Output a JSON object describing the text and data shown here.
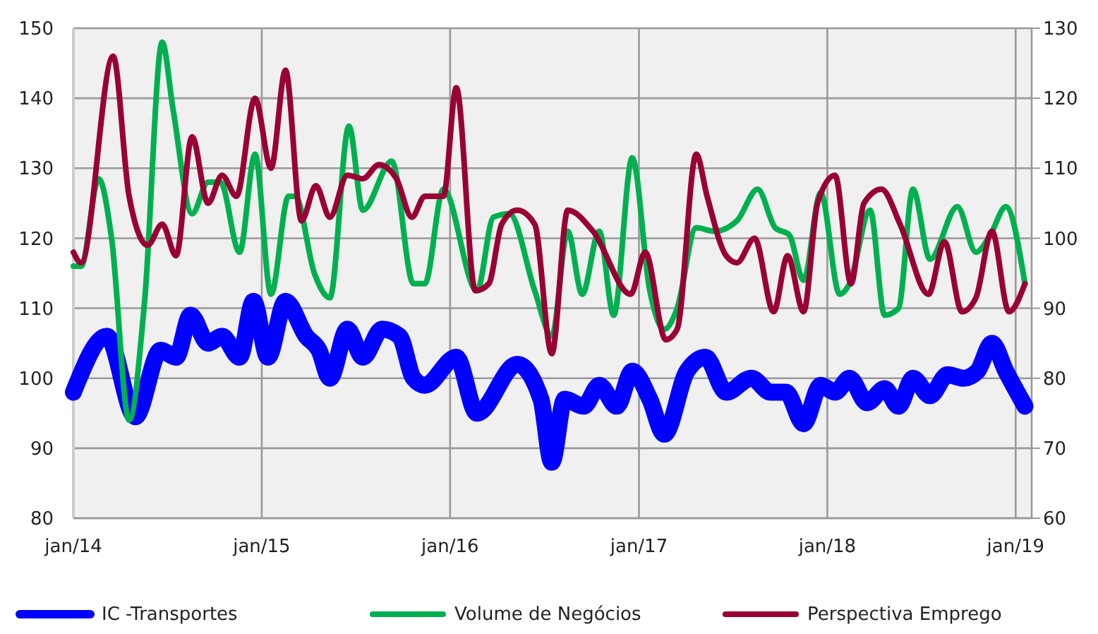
{
  "chart_data": {
    "type": "line",
    "xlim": [
      "2014-01-01",
      "2019-02-01"
    ],
    "xticks": [
      {
        "value": "2014-01-01",
        "label": "jan/14"
      },
      {
        "value": "2015-01-01",
        "label": "jan/15"
      },
      {
        "value": "2016-01-01",
        "label": "jan/16"
      },
      {
        "value": "2017-01-01",
        "label": "jan/17"
      },
      {
        "value": "2018-01-01",
        "label": "jan/18"
      },
      {
        "value": "2019-01-01",
        "label": "jan/19"
      }
    ],
    "ylim": [
      80,
      150
    ],
    "yticks": [
      80,
      90,
      100,
      110,
      120,
      130,
      140,
      150
    ],
    "y2lim": [
      60,
      130
    ],
    "y2ticks": [
      60,
      70,
      80,
      90,
      100,
      110,
      120,
      130
    ],
    "grid": true,
    "legend": "bottom",
    "marker": "none",
    "line_style": "solid",
    "series": [
      {
        "name": "IC -Transportes",
        "color": "#0000ff",
        "x": [
          "2014-01-01",
          "2014-03-07",
          "2014-05-01",
          "2014-06-19",
          "2014-07-19",
          "2014-08-16",
          "2014-09-19",
          "2014-10-16",
          "2014-11-19",
          "2014-12-16",
          "2015-01-13",
          "2015-02-16",
          "2015-03-28",
          "2015-04-22",
          "2015-05-13",
          "2015-06-16",
          "2015-07-16",
          "2015-08-22",
          "2015-09-25",
          "2015-10-22",
          "2015-11-13",
          "2016-01-13",
          "2016-02-22",
          "2016-05-10",
          "2016-06-25",
          "2016-07-16",
          "2016-08-10",
          "2016-09-16",
          "2016-10-16",
          "2016-11-19",
          "2016-12-19",
          "2017-01-22",
          "2017-02-19",
          "2017-04-04",
          "2017-05-10",
          "2017-06-19",
          "2017-08-07",
          "2017-09-13",
          "2017-10-13",
          "2017-11-16",
          "2017-12-19",
          "2018-01-16",
          "2018-02-13",
          "2018-03-19",
          "2018-04-22",
          "2018-05-19",
          "2018-06-16",
          "2018-07-19",
          "2018-08-22",
          "2018-09-22",
          "2018-10-19",
          "2018-11-16",
          "2018-12-13",
          "2019-01-19"
        ],
        "values": [
          98,
          106,
          94.5,
          104,
          103,
          109,
          105,
          106,
          103,
          111,
          103,
          111,
          106,
          104,
          100,
          107,
          103,
          107,
          106,
          100,
          99,
          103,
          95,
          102,
          97,
          88,
          97,
          96,
          99,
          96,
          101,
          97,
          92,
          101,
          103,
          98,
          100,
          98,
          98,
          93.5,
          99,
          98,
          100,
          96.5,
          98.5,
          96,
          100,
          97.5,
          100.5,
          100,
          101,
          105,
          101,
          96
        ]
      },
      {
        "name": "Volume de Negócios",
        "color": "#00b050",
        "x": [
          "2014-01-01",
          "2014-01-16",
          "2014-02-19",
          "2014-03-16",
          "2014-04-19",
          "2014-05-19",
          "2014-06-22",
          "2014-07-13",
          "2014-08-19",
          "2014-09-19",
          "2014-10-13",
          "2014-11-19",
          "2014-12-19",
          "2015-01-19",
          "2015-02-22",
          "2015-03-07",
          "2015-04-13",
          "2015-05-13",
          "2015-06-19",
          "2015-07-16",
          "2015-09-10",
          "2015-10-22",
          "2015-11-13",
          "2015-12-19",
          "2016-02-22",
          "2016-03-25",
          "2016-04-25",
          "2016-06-13",
          "2016-07-16",
          "2016-08-16",
          "2016-09-13",
          "2016-10-16",
          "2016-11-13",
          "2016-12-19",
          "2017-01-22",
          "2017-02-19",
          "2017-03-16",
          "2017-04-22",
          "2017-05-28",
          "2017-07-10",
          "2017-08-19",
          "2017-09-22",
          "2017-10-19",
          "2017-11-16",
          "2017-12-19",
          "2018-01-25",
          "2018-02-13",
          "2018-03-25",
          "2018-04-22",
          "2018-05-19",
          "2018-06-16",
          "2018-07-19",
          "2018-09-10",
          "2018-10-16",
          "2018-11-13",
          "2018-12-13",
          "2019-01-19"
        ],
        "values": [
          116,
          116,
          128.5,
          120,
          94,
          111,
          148,
          138.5,
          123.5,
          128,
          128,
          118,
          132,
          112,
          126,
          126,
          115,
          111.5,
          136,
          124,
          131,
          113.5,
          113.5,
          127,
          112.5,
          123,
          123.5,
          112.5,
          106,
          121,
          112,
          121,
          109,
          131.5,
          112.5,
          107,
          110,
          121.5,
          121,
          122.5,
          127,
          121.5,
          120.5,
          114,
          126.5,
          112,
          113.5,
          124,
          109,
          110,
          127,
          117,
          124.5,
          118,
          120.5,
          124.5,
          113.5
        ]
      },
      {
        "name": "Perspectiva Emprego",
        "color": "#990033",
        "axis": "y2",
        "x": [
          "2014-01-01",
          "2014-01-16",
          "2014-03-19",
          "2014-04-19",
          "2014-05-25",
          "2014-06-22",
          "2014-07-19",
          "2014-08-19",
          "2014-09-19",
          "2014-10-16",
          "2014-11-13",
          "2014-12-19",
          "2015-01-19",
          "2015-02-16",
          "2015-03-19",
          "2015-04-16",
          "2015-05-13",
          "2015-06-16",
          "2015-07-16",
          "2015-08-16",
          "2015-09-19",
          "2015-10-19",
          "2015-11-13",
          "2015-12-19",
          "2016-01-13",
          "2016-02-19",
          "2016-03-16",
          "2016-04-10",
          "2016-05-10",
          "2016-06-13",
          "2016-07-16",
          "2016-08-16",
          "2016-10-04",
          "2016-12-16",
          "2017-01-13",
          "2017-02-22",
          "2017-03-16",
          "2017-04-22",
          "2017-05-13",
          "2017-06-19",
          "2017-07-10",
          "2017-08-13",
          "2017-09-19",
          "2017-10-16",
          "2017-11-16",
          "2017-12-13",
          "2018-01-16",
          "2018-02-16",
          "2018-03-13",
          "2018-04-16",
          "2018-05-22",
          "2018-07-16",
          "2018-08-16",
          "2018-09-19",
          "2018-10-16",
          "2018-11-16",
          "2018-12-19",
          "2019-01-19"
        ],
        "values": [
          98,
          96.5,
          126,
          106,
          99,
          102,
          97.5,
          114.5,
          105,
          109,
          106,
          120,
          110,
          124,
          102.5,
          107.5,
          103,
          109,
          108.5,
          110.5,
          108.5,
          103,
          106,
          106,
          121.5,
          92.5,
          93.5,
          102,
          104,
          102,
          83.5,
          104,
          101,
          92,
          98,
          85.5,
          87,
          112,
          106,
          97.5,
          96.5,
          100,
          89.5,
          97.5,
          89.5,
          105,
          109,
          93.5,
          105,
          107,
          102,
          92,
          99.5,
          89.5,
          91.5,
          101,
          89.5,
          93.5
        ]
      }
    ]
  }
}
